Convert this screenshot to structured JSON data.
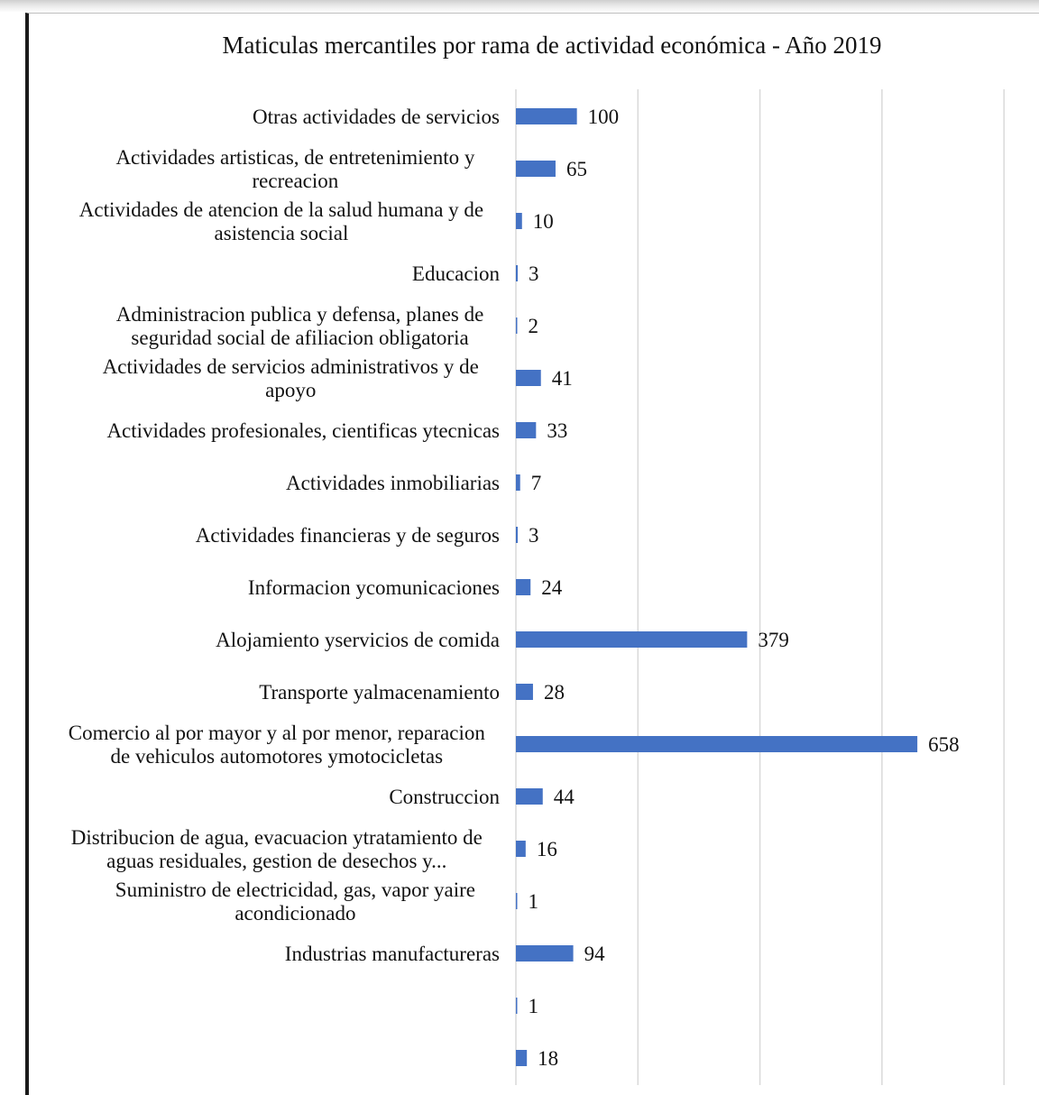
{
  "chart_data": {
    "type": "bar",
    "orientation": "horizontal",
    "title": "Maticulas mercantiles por rama de actividad económica - Año 2019",
    "xlabel": "",
    "ylabel": "",
    "xlim": [
      0,
      850
    ],
    "grid": true,
    "legend": "none",
    "bar_color": "#4472C4",
    "categories": [
      [
        "Otras actividades de servicios"
      ],
      [
        "Actividades artisticas, de entretenimiento y",
        "recreacion"
      ],
      [
        "Actividades de atencion de la salud humana y de",
        "asistencia social"
      ],
      [
        "Educacion"
      ],
      [
        "Administracion publica y defensa, planes de",
        "seguridad social de afiliacion obligatoria"
      ],
      [
        "Actividades de servicios administrativos y de",
        "apoyo"
      ],
      [
        "Actividades profesionales, cientificas ytecnicas"
      ],
      [
        "Actividades inmobiliarias"
      ],
      [
        "Actividades financieras y de seguros"
      ],
      [
        "Informacion ycomunicaciones"
      ],
      [
        "Alojamiento yservicios de comida"
      ],
      [
        "Transporte yalmacenamiento"
      ],
      [
        "Comercio al por mayor y al por menor, reparacion",
        "de vehiculos automotores ymotocicletas"
      ],
      [
        "Construccion"
      ],
      [
        "Distribucion de agua, evacuacion ytratamiento de",
        "aguas residuales, gestion de desechos y..."
      ],
      [
        "Suministro de electricidad, gas, vapor yaire",
        "acondicionado"
      ],
      [
        "Industrias manufactureras"
      ],
      [],
      []
    ],
    "values": [
      100,
      65,
      10,
      3,
      2,
      41,
      33,
      7,
      3,
      24,
      379,
      28,
      658,
      44,
      16,
      1,
      94,
      1,
      18
    ],
    "data_labels": [
      "100",
      "65",
      "10",
      "3",
      "2",
      "41",
      "33",
      "7",
      "3",
      "24",
      "379",
      "28",
      "658",
      "44",
      "16",
      "1",
      "94",
      "1",
      "18"
    ]
  }
}
